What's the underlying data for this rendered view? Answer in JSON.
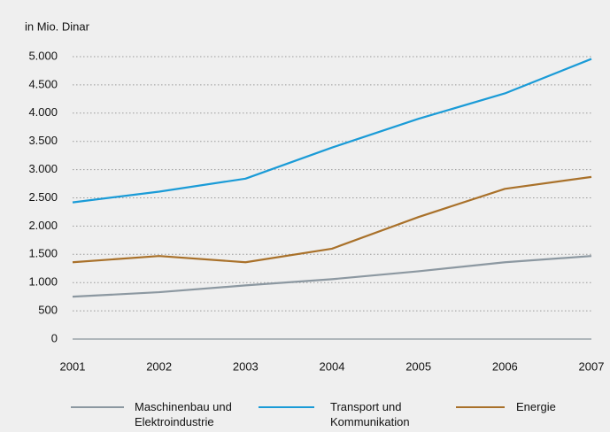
{
  "chart_data": {
    "type": "line",
    "y_label": "in Mio. Dinar",
    "categories": [
      "2001",
      "2002",
      "2003",
      "2004",
      "2005",
      "2006",
      "2007"
    ],
    "series": [
      {
        "name": "Maschinenbau und Elektroindustrie",
        "color": "#8c98a1",
        "values": [
          750,
          830,
          950,
          1060,
          1200,
          1360,
          1470
        ]
      },
      {
        "name": "Transport und Kommunikation",
        "color": "#1a9bd7",
        "values": [
          2420,
          2610,
          2840,
          3390,
          3900,
          4350,
          4960
        ]
      },
      {
        "name": "Energie",
        "color": "#a9712a",
        "values": [
          1360,
          1470,
          1360,
          1600,
          2160,
          2660,
          2870
        ]
      }
    ],
    "ylim": [
      0,
      5000
    ],
    "yticks": [
      0,
      500,
      {
        "value": 1000,
        "label": "1.000"
      },
      {
        "value": 1500,
        "label": "1.500"
      },
      {
        "value": 2000,
        "label": "2.000"
      },
      {
        "value": 2500,
        "label": "2.500"
      },
      {
        "value": 3000,
        "label": "3.000"
      },
      {
        "value": 3500,
        "label": "3.500"
      },
      {
        "value": 4000,
        "label": "4.000"
      },
      {
        "value": 4500,
        "label": "4.500"
      },
      {
        "value": 5000,
        "label": "5.000"
      }
    ],
    "grid": true,
    "legend": "bottom"
  }
}
